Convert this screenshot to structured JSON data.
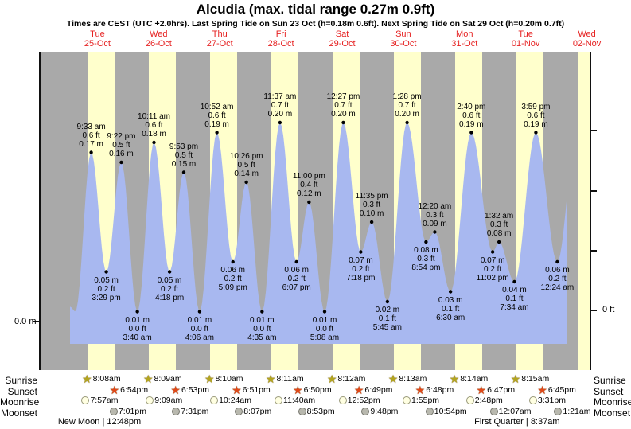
{
  "header": {
    "title": "Alcudia (max. tidal range 0.27m 0.9ft)",
    "subtitle": "Times are CEST (UTC +2.0hrs). Last Spring Tide on Sun 23 Oct (h=0.18m 0.6ft). Next Spring Tide on Sat 29 Oct (h=0.20m 0.7ft)"
  },
  "axis": {
    "left_zero_label": "0.0 m",
    "right_zero_label": "0 ft"
  },
  "days": [
    {
      "dow": "Tue",
      "date": "25-Oct"
    },
    {
      "dow": "Wed",
      "date": "26-Oct"
    },
    {
      "dow": "Thu",
      "date": "27-Oct"
    },
    {
      "dow": "Fri",
      "date": "28-Oct"
    },
    {
      "dow": "Sat",
      "date": "29-Oct"
    },
    {
      "dow": "Sun",
      "date": "30-Oct"
    },
    {
      "dow": "Mon",
      "date": "31-Oct"
    },
    {
      "dow": "Tue",
      "date": "01-Nov"
    },
    {
      "dow": "Wed",
      "date": "02-Nov"
    }
  ],
  "chart_data": {
    "type": "area",
    "title": "Alcudia (max. tidal range 0.27m 0.9ft)",
    "ylabel_left": "0.0 m",
    "ylabel_right": "0 ft",
    "series_name": "tide height",
    "units": {
      "primary": "m",
      "secondary": "ft"
    },
    "extremes": [
      {
        "day": 0,
        "time": "9:33 am",
        "kind": "high",
        "m": "0.17",
        "ft": "0.6"
      },
      {
        "day": 0,
        "time": "3:29 pm",
        "kind": "low",
        "m": "0.05",
        "ft": "0.2"
      },
      {
        "day": 0,
        "time": "9:22 pm",
        "kind": "high",
        "m": "0.16",
        "ft": "0.5"
      },
      {
        "day": 1,
        "time": "3:40 am",
        "kind": "low",
        "m": "0.01",
        "ft": "0.0"
      },
      {
        "day": 1,
        "time": "10:11 am",
        "kind": "high",
        "m": "0.18",
        "ft": "0.6"
      },
      {
        "day": 1,
        "time": "4:18 pm",
        "kind": "low",
        "m": "0.05",
        "ft": "0.2"
      },
      {
        "day": 1,
        "time": "9:53 pm",
        "kind": "high",
        "m": "0.15",
        "ft": "0.5"
      },
      {
        "day": 2,
        "time": "4:06 am",
        "kind": "low",
        "m": "0.01",
        "ft": "0.0"
      },
      {
        "day": 2,
        "time": "10:52 am",
        "kind": "high",
        "m": "0.19",
        "ft": "0.6"
      },
      {
        "day": 2,
        "time": "5:09 pm",
        "kind": "low",
        "m": "0.06",
        "ft": "0.2"
      },
      {
        "day": 2,
        "time": "10:26 pm",
        "kind": "high",
        "m": "0.14",
        "ft": "0.5"
      },
      {
        "day": 3,
        "time": "4:35 am",
        "kind": "low",
        "m": "0.01",
        "ft": "0.0"
      },
      {
        "day": 3,
        "time": "11:37 am",
        "kind": "high",
        "m": "0.20",
        "ft": "0.7"
      },
      {
        "day": 3,
        "time": "6:07 pm",
        "kind": "low",
        "m": "0.06",
        "ft": "0.2"
      },
      {
        "day": 3,
        "time": "11:00 pm",
        "kind": "high",
        "m": "0.12",
        "ft": "0.4"
      },
      {
        "day": 4,
        "time": "5:08 am",
        "kind": "low",
        "m": "0.01",
        "ft": "0.0"
      },
      {
        "day": 4,
        "time": "12:27 pm",
        "kind": "high",
        "m": "0.20",
        "ft": "0.7"
      },
      {
        "day": 4,
        "time": "7:18 pm",
        "kind": "low",
        "m": "0.07",
        "ft": "0.2"
      },
      {
        "day": 4,
        "time": "11:35 pm",
        "kind": "high",
        "m": "0.10",
        "ft": "0.3"
      },
      {
        "day": 5,
        "time": "5:45 am",
        "kind": "low",
        "m": "0.02",
        "ft": "0.1"
      },
      {
        "day": 5,
        "time": "1:28 pm",
        "kind": "high",
        "m": "0.20",
        "ft": "0.7"
      },
      {
        "day": 5,
        "time": "8:54 pm",
        "kind": "low",
        "m": "0.08",
        "ft": "0.3"
      },
      {
        "day": 6,
        "time": "12:20 am",
        "kind": "high",
        "m": "0.09",
        "ft": "0.3"
      },
      {
        "day": 6,
        "time": "6:30 am",
        "kind": "low",
        "m": "0.03",
        "ft": "0.1"
      },
      {
        "day": 6,
        "time": "2:40 pm",
        "kind": "high",
        "m": "0.19",
        "ft": "0.6"
      },
      {
        "day": 6,
        "time": "11:02 pm",
        "kind": "low",
        "m": "0.07",
        "ft": "0.2"
      },
      {
        "day": 7,
        "time": "1:32 am",
        "kind": "high",
        "m": "0.08",
        "ft": "0.3"
      },
      {
        "day": 7,
        "time": "7:34 am",
        "kind": "low",
        "m": "0.04",
        "ft": "0.1"
      },
      {
        "day": 7,
        "time": "3:59 pm",
        "kind": "high",
        "m": "0.19",
        "ft": "0.6"
      },
      {
        "day": 8,
        "time": "12:24 am",
        "kind": "low",
        "m": "0.06",
        "ft": "0.2"
      }
    ]
  },
  "astro": {
    "left_labels": [
      "Sunrise",
      "Sunset",
      "Moonrise",
      "Moonset"
    ],
    "right_labels": [
      "Sunrise",
      "Sunset",
      "Moonrise",
      "Moonset"
    ],
    "sunrise": [
      {
        "day": 0,
        "time": "8:08am"
      },
      {
        "day": 1,
        "time": "8:09am"
      },
      {
        "day": 2,
        "time": "8:10am"
      },
      {
        "day": 3,
        "time": "8:11am"
      },
      {
        "day": 4,
        "time": "8:12am"
      },
      {
        "day": 5,
        "time": "8:13am"
      },
      {
        "day": 6,
        "time": "8:14am"
      },
      {
        "day": 7,
        "time": "8:15am"
      }
    ],
    "sunset": [
      {
        "day": 0,
        "time": "6:54pm"
      },
      {
        "day": 1,
        "time": "6:53pm"
      },
      {
        "day": 2,
        "time": "6:51pm"
      },
      {
        "day": 3,
        "time": "6:50pm"
      },
      {
        "day": 4,
        "time": "6:49pm"
      },
      {
        "day": 5,
        "time": "6:48pm"
      },
      {
        "day": 6,
        "time": "6:47pm"
      },
      {
        "day": 7,
        "time": "6:45pm"
      }
    ],
    "moonrise": [
      {
        "day": 0,
        "time": "7:57am"
      },
      {
        "day": 1,
        "time": "9:09am"
      },
      {
        "day": 2,
        "time": "10:24am"
      },
      {
        "day": 3,
        "time": "11:40am"
      },
      {
        "day": 4,
        "time": "12:52pm"
      },
      {
        "day": 5,
        "time": "1:55pm"
      },
      {
        "day": 6,
        "time": "2:48pm"
      },
      {
        "day": 7,
        "time": "3:31pm"
      }
    ],
    "moonset": [
      {
        "day": 0,
        "time": "7:01pm"
      },
      {
        "day": 1,
        "time": "7:31pm"
      },
      {
        "day": 2,
        "time": "8:07pm"
      },
      {
        "day": 3,
        "time": "8:53pm"
      },
      {
        "day": 4,
        "time": "9:48pm"
      },
      {
        "day": 5,
        "time": "10:54pm"
      },
      {
        "day": 7,
        "time": "12:07am"
      },
      {
        "day": 8,
        "time": "1:21am"
      }
    ],
    "phases": [
      {
        "day": 0,
        "time": "12:48pm",
        "label": "New Moon | 12:48pm"
      },
      {
        "day": 7,
        "time": "8:37am",
        "label": "First Quarter | 8:37am"
      }
    ]
  },
  "colors": {
    "day_label_red": "#e62222",
    "night_band": "#a9a9a9",
    "daylight_band": "#ffffcc",
    "tide_fill": "#a8b8f0",
    "sunrise_star": "#b3a51f",
    "sunset_star": "#e04818",
    "moonrise_fill": "#ffffe2",
    "moonrise_border": "#99997a",
    "moonset_fill": "#b8b8ae",
    "moonset_border": "#77776f"
  }
}
